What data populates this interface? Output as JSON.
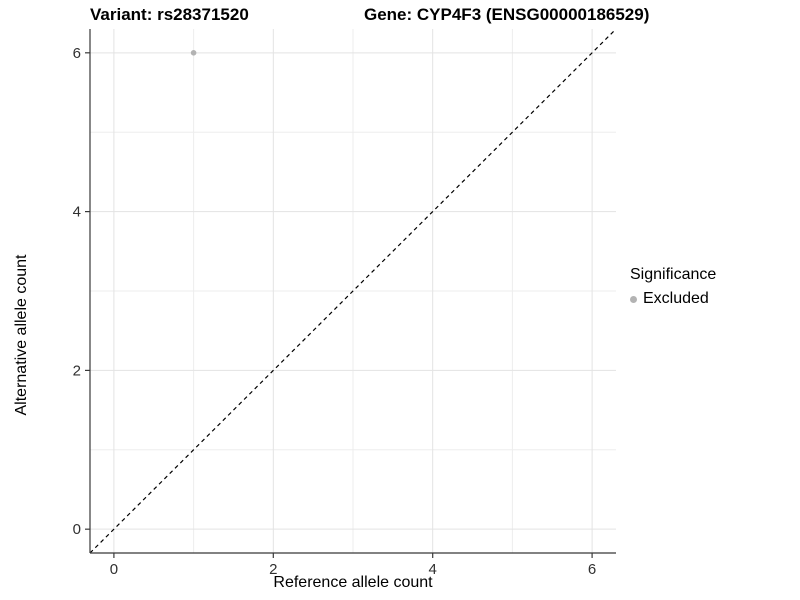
{
  "title_bar": {
    "variant_title": "Variant: rs28371520",
    "gene_title": "Gene: CYP4F3 (ENSG00000186529)"
  },
  "axes": {
    "x_label": "Reference allele count",
    "y_label": "Alternative allele count"
  },
  "legend": {
    "title": "Significance",
    "entries": [
      {
        "label": "Excluded",
        "color": "#B3B3B3"
      }
    ]
  },
  "chart_data": {
    "type": "scatter",
    "title": "Variant: rs28371520 / Gene: CYP4F3 (ENSG00000186529)",
    "xlabel": "Reference allele count",
    "ylabel": "Alternative allele count",
    "xlim": [
      -0.3,
      6.3
    ],
    "ylim": [
      -0.3,
      6.3
    ],
    "x_ticks": [
      0,
      2,
      4,
      6
    ],
    "y_ticks": [
      0,
      2,
      4,
      6
    ],
    "x_minor_ticks": [
      1,
      3,
      5
    ],
    "y_minor_ticks": [
      1,
      3,
      5
    ],
    "grid": "major and minor, light gray on white",
    "legend_position": "right",
    "legend_title": "Significance",
    "series": [
      {
        "name": "Excluded",
        "color": "#B3B3B3",
        "points": [
          {
            "x": 1,
            "y": 6
          }
        ]
      }
    ],
    "reference_line": {
      "kind": "identity",
      "equation": "y = x",
      "style": "dashed",
      "color": "#000000"
    }
  },
  "colors": {
    "background": "#FFFFFF",
    "point": "#B3B3B3",
    "grid_major": "#E3E3E3",
    "grid_minor": "#EDEDED",
    "axis_line": "#383838",
    "tick_mark": "#383838",
    "tick_label": "#303030",
    "title_text": "#000000"
  }
}
